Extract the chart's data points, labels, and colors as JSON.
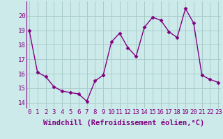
{
  "x": [
    0,
    1,
    2,
    3,
    4,
    5,
    6,
    7,
    8,
    9,
    10,
    11,
    12,
    13,
    14,
    15,
    16,
    17,
    18,
    19,
    20,
    21,
    22,
    23
  ],
  "y": [
    19.0,
    16.1,
    15.8,
    15.1,
    14.8,
    14.7,
    14.6,
    14.1,
    15.5,
    15.9,
    18.2,
    18.8,
    17.8,
    17.2,
    19.2,
    19.9,
    19.7,
    18.9,
    18.5,
    20.5,
    19.5,
    15.9,
    15.6,
    15.4
  ],
  "line_color": "#800080",
  "marker": "D",
  "marker_size": 2.5,
  "bg_color": "#cceaea",
  "grid_color": "#aacccc",
  "xlabel": "Windchill (Refroidissement éolien,°C)",
  "xlabel_fontsize": 7.5,
  "xtick_labels": [
    "0",
    "1",
    "2",
    "3",
    "4",
    "5",
    "6",
    "7",
    "8",
    "9",
    "10",
    "11",
    "12",
    "13",
    "14",
    "15",
    "16",
    "17",
    "18",
    "19",
    "20",
    "21",
    "22",
    "23"
  ],
  "ytick_values": [
    14,
    15,
    16,
    17,
    18,
    19,
    20
  ],
  "ylim": [
    13.6,
    21.0
  ],
  "xlim": [
    -0.3,
    23.3
  ],
  "tick_fontsize": 6.5,
  "line_width": 1.0
}
